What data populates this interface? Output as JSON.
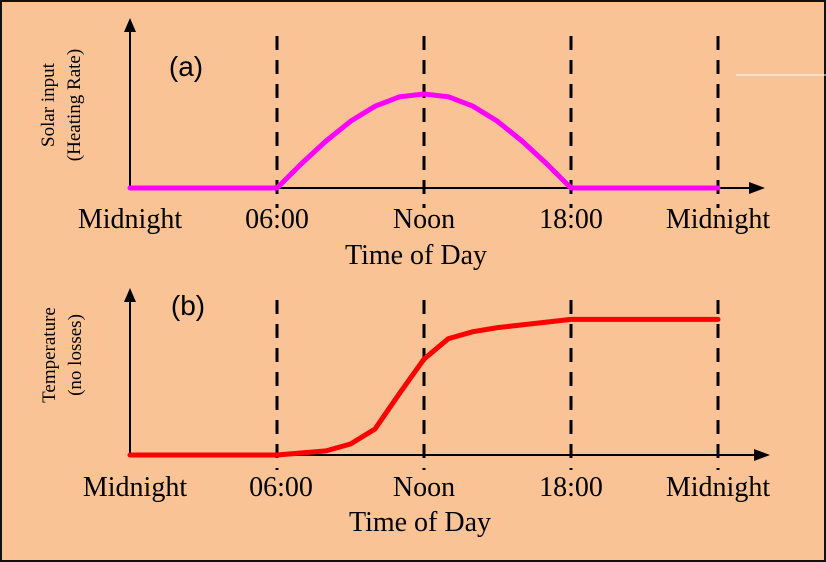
{
  "chart_data": [
    {
      "type": "line",
      "panel_label": "(a)",
      "ylabel_lines": [
        "Solar input",
        "(Heating Rate)"
      ],
      "xlabel": "Time of Day",
      "tick_labels": [
        "Midnight",
        "06:00",
        "Noon",
        "18:00",
        "Midnight"
      ],
      "x_hours": [
        0,
        6,
        12,
        18,
        24
      ],
      "xlim": [
        0,
        24
      ],
      "ylim": [
        0,
        1.2
      ],
      "series_color": "#ff00ff",
      "x": [
        0,
        6,
        7,
        8,
        9,
        10,
        11,
        12,
        13,
        14,
        15,
        16,
        17,
        18,
        24
      ],
      "y": [
        0,
        0,
        0.26,
        0.5,
        0.71,
        0.87,
        0.97,
        1.0,
        0.97,
        0.87,
        0.71,
        0.5,
        0.26,
        0,
        0
      ]
    },
    {
      "type": "line",
      "panel_label": "(b)",
      "ylabel_lines": [
        "Temperature",
        "(no losses)"
      ],
      "xlabel": "Time of Day",
      "tick_labels": [
        "Midnight",
        "06:00",
        "Noon",
        "18:00",
        "Midnight"
      ],
      "x_hours": [
        0,
        6,
        12,
        18,
        24
      ],
      "xlim": [
        0,
        24
      ],
      "ylim": [
        0,
        1.2
      ],
      "series_color": "#ff0000",
      "x": [
        0,
        6,
        8,
        9,
        10,
        11,
        12,
        13,
        14,
        15,
        16,
        17,
        18,
        24
      ],
      "y": [
        0,
        0,
        0.03,
        0.08,
        0.19,
        0.45,
        0.7,
        0.85,
        0.9,
        0.93,
        0.95,
        0.97,
        0.99,
        0.99
      ]
    }
  ],
  "colors": {
    "background": "#f9c396",
    "axis": "#000000",
    "dashed_lines": "#000000"
  }
}
